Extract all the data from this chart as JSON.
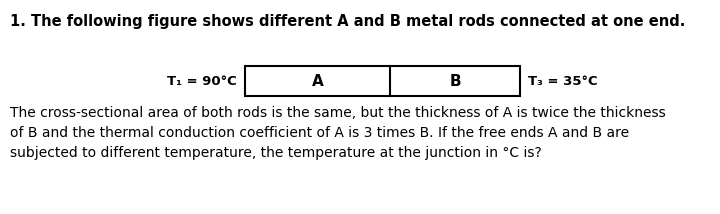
{
  "title_line": "1. The following figure shows different A and B metal rods connected at one end.",
  "t1_label": "T₁ = 90°C",
  "t3_label": "T₃ = 35°C",
  "rod_A_label": "A",
  "rod_B_label": "B",
  "body_text": "The cross-sectional area of both rods is the same, but the thickness of A is twice the thickness\nof B and the thermal conduction coefficient of A is 3 times B. If the free ends A and B are\nsubjected to different temperature, the temperature at the junction in °C is?",
  "bg_color": "#ffffff",
  "text_color": "#000000",
  "box_color": "#000000",
  "title_fontsize": 10.5,
  "label_fontsize": 9.5,
  "body_fontsize": 10,
  "rod_label_fontsize": 11,
  "fig_width": 7.2,
  "fig_height": 2.14
}
